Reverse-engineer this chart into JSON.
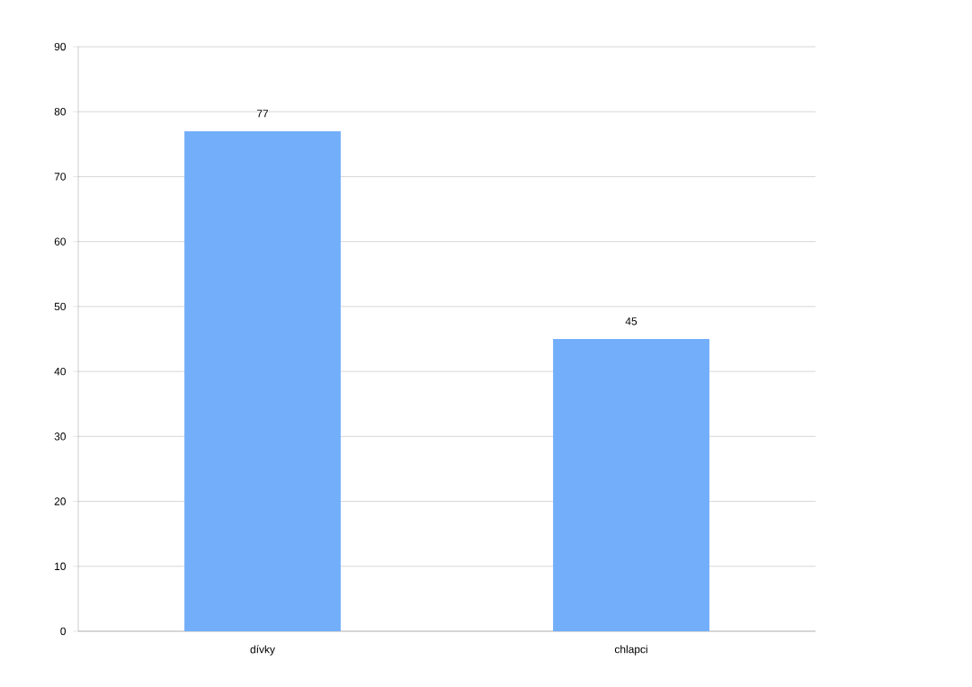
{
  "chart_data": {
    "type": "bar",
    "categories": [
      "dívky",
      "chlapci"
    ],
    "values": [
      77,
      45
    ],
    "color": "#72aefa",
    "ylim": [
      0,
      90
    ],
    "yticks": [
      0,
      10,
      20,
      30,
      40,
      50,
      60,
      70,
      80,
      90
    ],
    "grid": "y",
    "data_labels": true
  }
}
